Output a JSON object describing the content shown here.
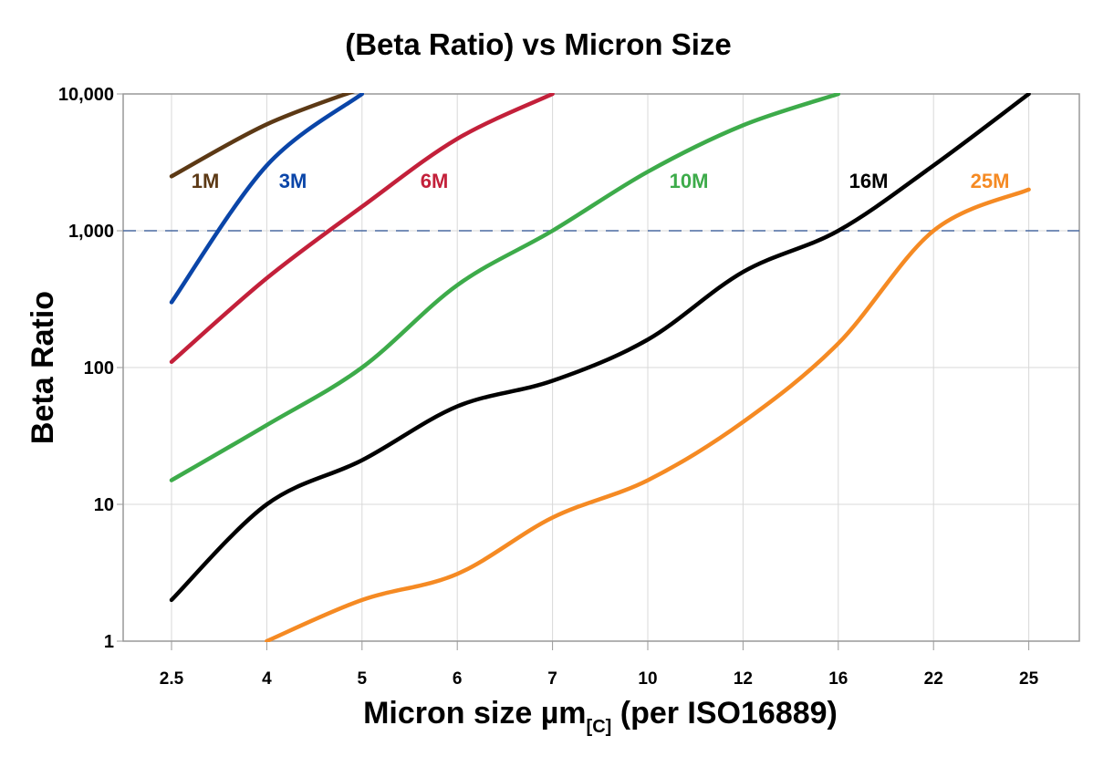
{
  "chart_data": {
    "type": "line",
    "title": "(Beta Ratio) vs Micron Size",
    "xlabel": "Micron size µm",
    "xlabel_subscript": "[C]",
    "xlabel_suffix": " (per ISO16889)",
    "ylabel": "Beta Ratio",
    "yscale": "log",
    "ylim": [
      1,
      10000
    ],
    "yticks": [
      1,
      10,
      100,
      1000,
      10000
    ],
    "ytick_labels": [
      "1",
      "10",
      "100",
      "1,000",
      "10,000"
    ],
    "categories": [
      "2.5",
      "4",
      "5",
      "6",
      "7",
      "10",
      "12",
      "16",
      "22",
      "25"
    ],
    "grid": true,
    "reference_line": {
      "y": 1000,
      "style": "dashed",
      "color": "#4a6aa0"
    },
    "series": [
      {
        "name": "1M",
        "color": "#5c3915",
        "values": [
          2500,
          6000,
          11000,
          null,
          null,
          null,
          null,
          null,
          null,
          null
        ]
      },
      {
        "name": "3M",
        "color": "#0a45a8",
        "values": [
          300,
          3000,
          10000,
          null,
          null,
          null,
          null,
          null,
          null,
          null
        ]
      },
      {
        "name": "6M",
        "color": "#c3203a",
        "values": [
          110,
          450,
          1500,
          4700,
          10000,
          null,
          null,
          null,
          null,
          null
        ]
      },
      {
        "name": "10M",
        "color": "#3dab4a",
        "values": [
          15,
          38,
          100,
          400,
          1000,
          2700,
          5900,
          10000,
          null,
          null
        ]
      },
      {
        "name": "16M",
        "color": "#000000",
        "values": [
          2,
          10,
          21,
          52,
          80,
          160,
          500,
          1000,
          3000,
          10000
        ]
      },
      {
        "name": "25M",
        "color": "#f58a23",
        "values": [
          null,
          1,
          2,
          3.1,
          8,
          15,
          40,
          150,
          1000,
          2000
        ]
      }
    ]
  }
}
